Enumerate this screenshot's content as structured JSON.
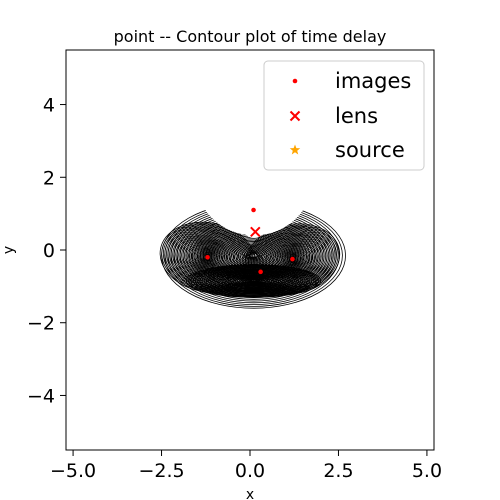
{
  "chart_data": {
    "type": "contour",
    "title": "point -- Contour plot of time delay",
    "xlabel": "x",
    "ylabel": "y",
    "xlim": [
      -5.2,
      5.2
    ],
    "ylim": [
      -5.5,
      5.5
    ],
    "xticks": [
      -5.0,
      -2.5,
      0.0,
      2.5,
      5.0
    ],
    "xtick_labels": [
      "−5.0",
      "−2.5",
      "0.0",
      "2.5",
      "5.0"
    ],
    "yticks": [
      -4,
      -2,
      0,
      2,
      4
    ],
    "ytick_labels": [
      "−4",
      "−2",
      "0",
      "2",
      "4"
    ],
    "grid": false,
    "legend_position": "top-right",
    "series": [
      {
        "name": "images",
        "marker": "dot",
        "color": "#ff0000",
        "points": [
          [
            0.1,
            1.1
          ],
          [
            -1.2,
            -0.2
          ],
          [
            1.2,
            -0.25
          ],
          [
            0.3,
            -0.6
          ]
        ]
      },
      {
        "name": "lens",
        "marker": "x",
        "color": "#ff0000",
        "points": [
          [
            0.15,
            0.5
          ]
        ]
      },
      {
        "name": "source",
        "marker": "star",
        "color": "#ffa500",
        "points": []
      }
    ],
    "contour": {
      "color": "#000000",
      "region": "horseshoe-shaped region centered near (0.1, -0.1), notch at top around (0.1, 0.4)",
      "minima": [
        [
          -1.2,
          -0.2
        ],
        [
          1.2,
          -0.25
        ]
      ]
    }
  }
}
